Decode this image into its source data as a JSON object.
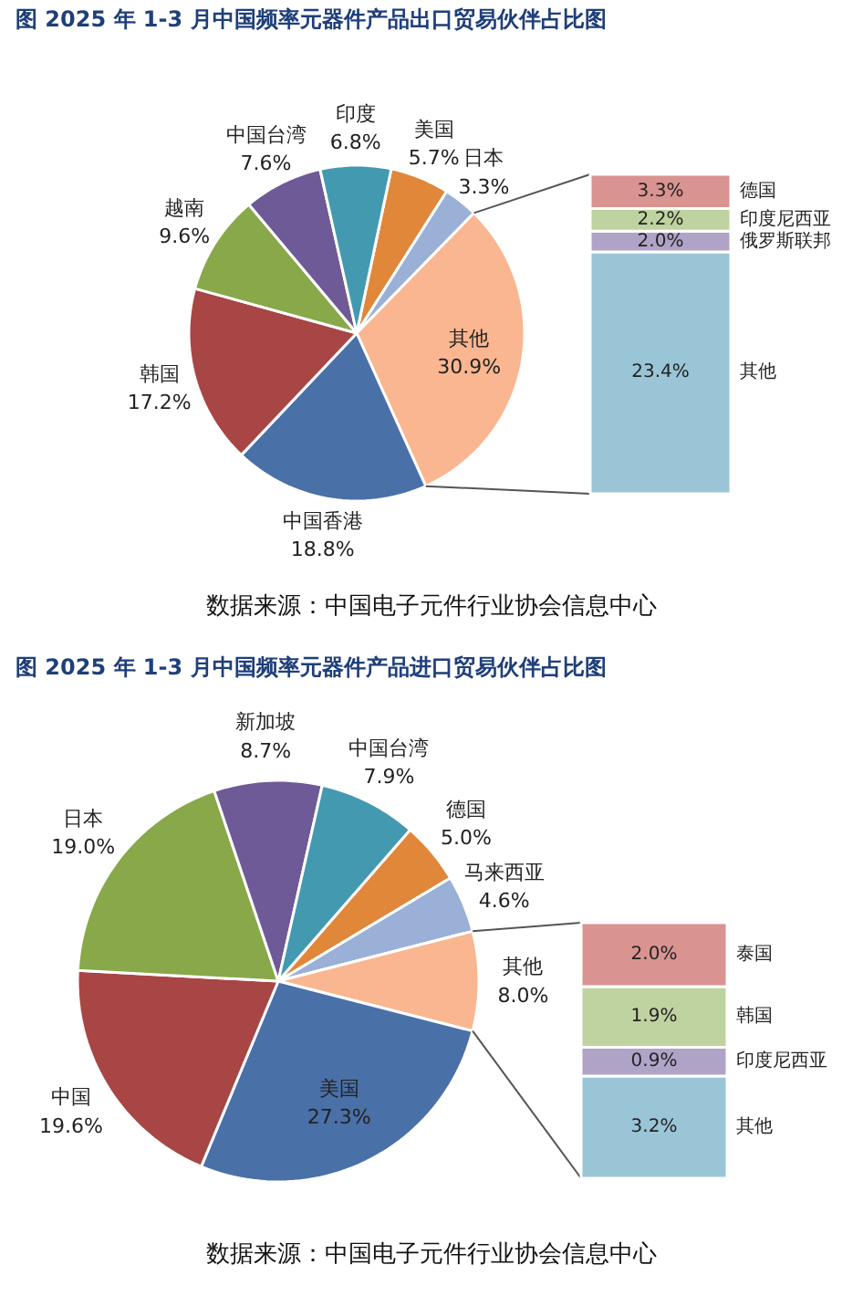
{
  "chart_data": [
    {
      "type": "pie",
      "title": "图   2025 年 1-3 月中国频率元器件产品出口贸易伙伴占比图",
      "categories": [
        "美国",
        "日本",
        "其他",
        "中国香港",
        "韩国",
        "越南",
        "中国台湾",
        "印度"
      ],
      "values": [
        5.7,
        3.3,
        30.9,
        18.8,
        17.2,
        9.6,
        7.6,
        6.8
      ],
      "colors": [
        "#e0873a",
        "#9ab0d6",
        "#f9b690",
        "#4a70a8",
        "#a84545",
        "#88a84a",
        "#6e5a96",
        "#4399b0"
      ],
      "value_labels": [
        "5.7%",
        "3.3%",
        "30.9%",
        "18.8%",
        "17.2%",
        "9.6%",
        "7.6%",
        "6.8%"
      ],
      "annotations": [
        "数据来源：中国电子元件行业协会信息中心"
      ]
    },
    {
      "type": "bar",
      "stacked": true,
      "categories": [
        null
      ],
      "series": [
        {
          "name": "其他",
          "color": "#99c5d6",
          "values": [
            23.4
          ],
          "value_labels": [
            "23.4%"
          ]
        },
        {
          "name": "俄罗斯联邦",
          "color": "#b0a3c8",
          "values": [
            2.0
          ],
          "value_labels": [
            "2.0%"
          ]
        },
        {
          "name": "印度尼西亚",
          "color": "#bfd3a0",
          "values": [
            2.2
          ],
          "value_labels": [
            "2.2%"
          ]
        },
        {
          "name": "德国",
          "color": "#d99391",
          "values": [
            3.3
          ],
          "value_labels": [
            "3.3%"
          ]
        }
      ]
    },
    {
      "type": "pie",
      "title": "图   2025 年 1-3 月中国频率元器件产品进口贸易伙伴占比图",
      "categories": [
        "德国",
        "马来西亚",
        "其他",
        "美国",
        "中国",
        "日本",
        "新加坡",
        "中国台湾"
      ],
      "values": [
        5.0,
        4.6,
        8.0,
        27.3,
        19.6,
        19.0,
        8.7,
        7.9
      ],
      "colors": [
        "#e0873a",
        "#9ab0d6",
        "#f9b690",
        "#4a70a8",
        "#a84545",
        "#88a84a",
        "#6e5a96",
        "#4399b0"
      ],
      "value_labels": [
        "5.0%",
        "4.6%",
        "8.0%",
        "27.3%",
        "19.6%",
        "19.0%",
        "8.7%",
        "7.9%"
      ],
      "annotations": [
        "数据来源：中国电子元件行业协会信息中心"
      ]
    },
    {
      "type": "bar",
      "stacked": true,
      "categories": [
        null
      ],
      "series": [
        {
          "name": "其他",
          "color": "#99c5d6",
          "values": [
            3.2
          ],
          "value_labels": [
            "3.2%"
          ]
        },
        {
          "name": "印度尼西亚",
          "color": "#b0a3c8",
          "values": [
            0.9
          ],
          "value_labels": [
            "0.9%"
          ]
        },
        {
          "name": "韩国",
          "color": "#bfd3a0",
          "values": [
            1.9
          ],
          "value_labels": [
            "1.9%"
          ]
        },
        {
          "name": "泰国",
          "color": "#d99391",
          "values": [
            2.0
          ],
          "value_labels": [
            "2.0%"
          ]
        }
      ]
    }
  ]
}
